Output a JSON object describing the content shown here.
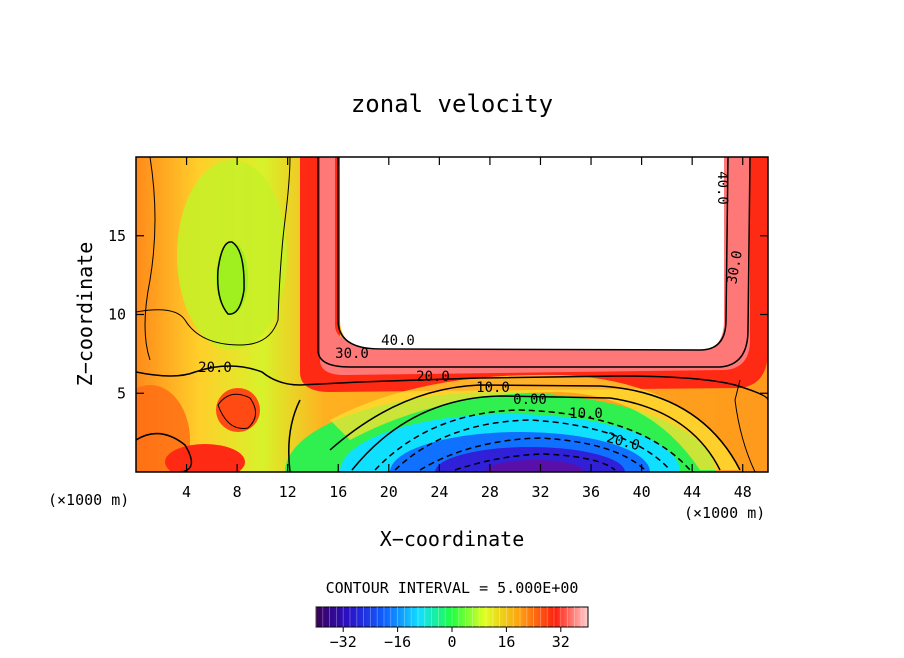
{
  "chart_data": {
    "type": "heatmap",
    "title": "zonal velocity",
    "xlabel": "X−coordinate",
    "ylabel": "Z−coordinate",
    "x_unit_left": "(×1000 m)",
    "x_unit_right": "(×1000 m)",
    "xlim": [
      0,
      50
    ],
    "ylim": [
      0,
      20
    ],
    "x_ticks": [
      4,
      8,
      12,
      16,
      20,
      24,
      28,
      32,
      36,
      40,
      44,
      48
    ],
    "y_ticks": [
      5,
      10,
      15
    ],
    "contour_interval_text": "CONTOUR INTERVAL = 5.000E+00",
    "contour_labels": [
      {
        "text": "40.0",
        "x": 47,
        "z": 18
      },
      {
        "text": "30.0",
        "x": 47.7,
        "z": 13
      },
      {
        "text": "40.0",
        "x": 20,
        "z": 8.3
      },
      {
        "text": "30.0",
        "x": 17,
        "z": 7.5
      },
      {
        "text": "20.0",
        "x": 6,
        "z": 6.5
      },
      {
        "text": "20.0",
        "x": 23.5,
        "z": 6.0
      },
      {
        "text": "10.0",
        "x": 28,
        "z": 5.4
      },
      {
        "text": "0.00",
        "x": 31,
        "z": 4.5
      },
      {
        "text": "10.0",
        "x": 35.5,
        "z": 3.7
      },
      {
        "text": "20.0",
        "x": 38.5,
        "z": 2.0
      }
    ],
    "colorbar": {
      "min": -40,
      "max": 40,
      "tick_labels": [
        "−32",
        "−16",
        "0",
        "16",
        "32"
      ],
      "tick_values": [
        -32,
        -16,
        0,
        16,
        32
      ]
    },
    "field_summary": {
      "jet_core_min_value": -40,
      "jet_core_location": {
        "x": 31,
        "z": 0.5
      },
      "upper_blank_region": {
        "x_range": [
          16.5,
          46.5
        ],
        "z_range": [
          8,
          20
        ],
        "value": "> 40"
      },
      "colormap": "rainbow (purple-blue-cyan-green-yellow-orange-red-pink)"
    }
  }
}
